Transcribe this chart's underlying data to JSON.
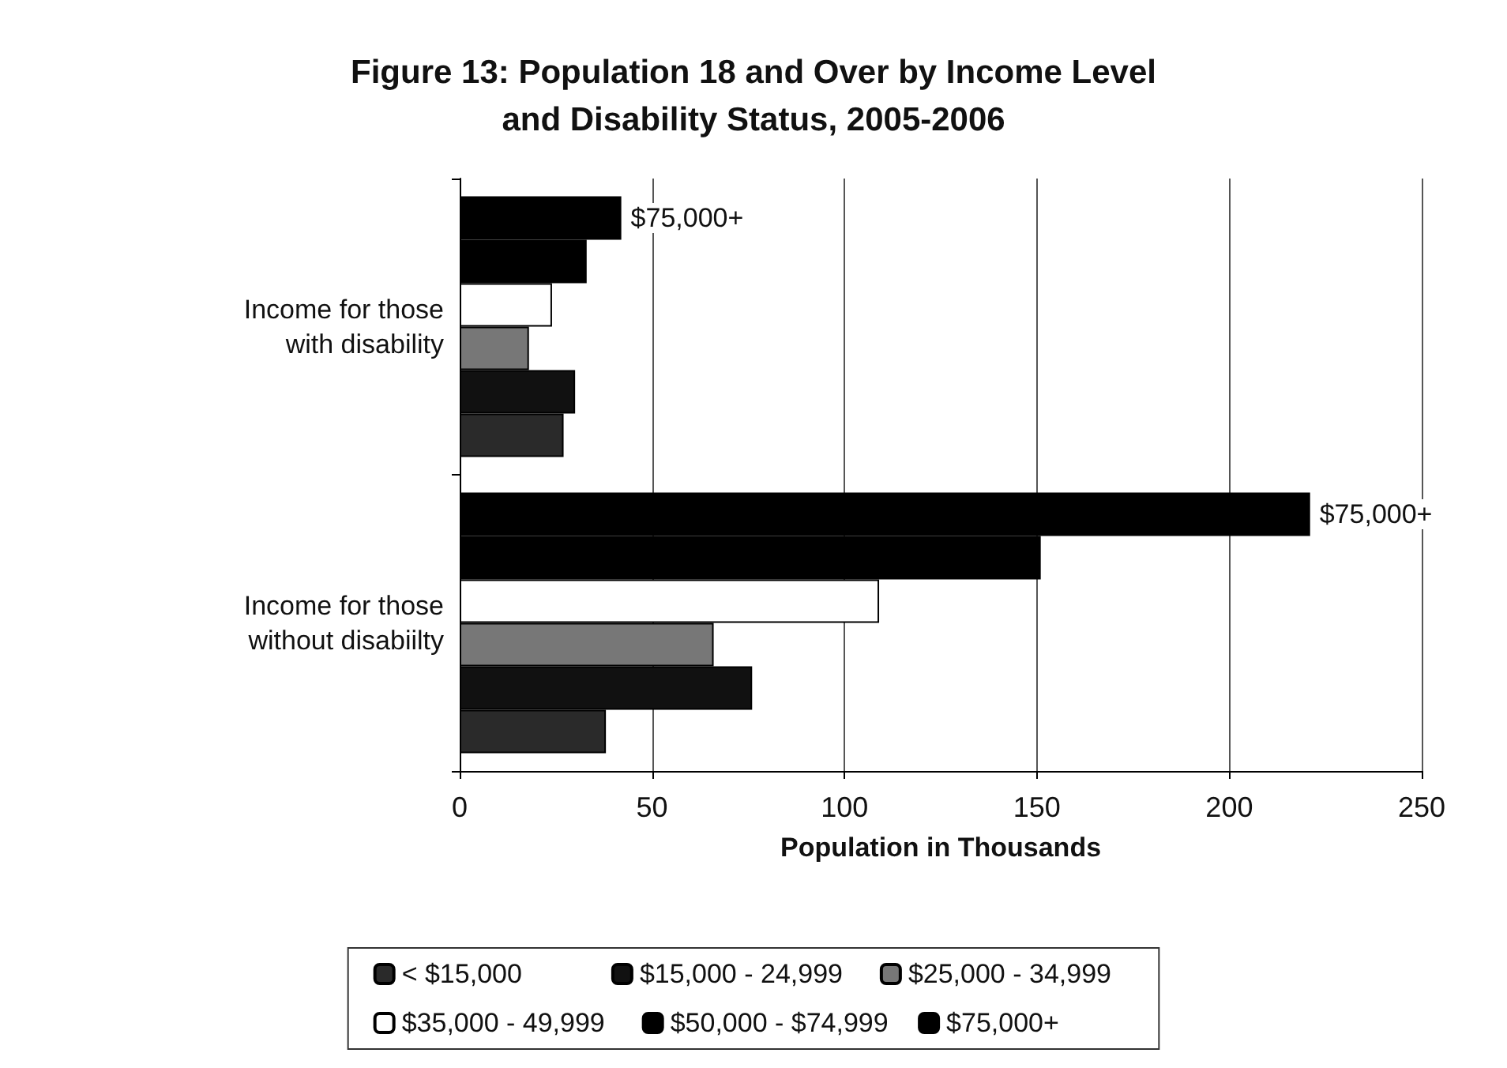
{
  "chart_data": {
    "type": "bar",
    "orientation": "horizontal",
    "title": "Figure 13: Population 18 and Over by Income Level\nand Disability Status, 2005-2006",
    "xlabel": "Population in Thousands",
    "categories": [
      "Income for those\nwith disability",
      "Income for those\nwithout disabiilty"
    ],
    "series": [
      {
        "name": "< $15,000",
        "color": "#2a2a2a",
        "values": [
          27,
          38
        ]
      },
      {
        "name": "$15,000 - 24,999",
        "color": "#111111",
        "values": [
          30,
          76
        ]
      },
      {
        "name": "$25,000 - 34,999",
        "color": "#777777",
        "values": [
          18,
          66
        ]
      },
      {
        "name": "$35,000 - 49,999",
        "color": "#ffffff",
        "values": [
          24,
          109
        ]
      },
      {
        "name": "$50,000 - $74,999",
        "color": "#000000",
        "values": [
          33,
          151
        ]
      },
      {
        "name": "$75,000+",
        "color": "#000000",
        "values": [
          42,
          221
        ]
      }
    ],
    "annotations": [
      "$75,000+",
      "$75,000+"
    ],
    "xlim": [
      0,
      250
    ],
    "xticks": [
      0,
      50,
      100,
      150,
      200,
      250
    ],
    "grid": "x",
    "legend": "bottom"
  }
}
